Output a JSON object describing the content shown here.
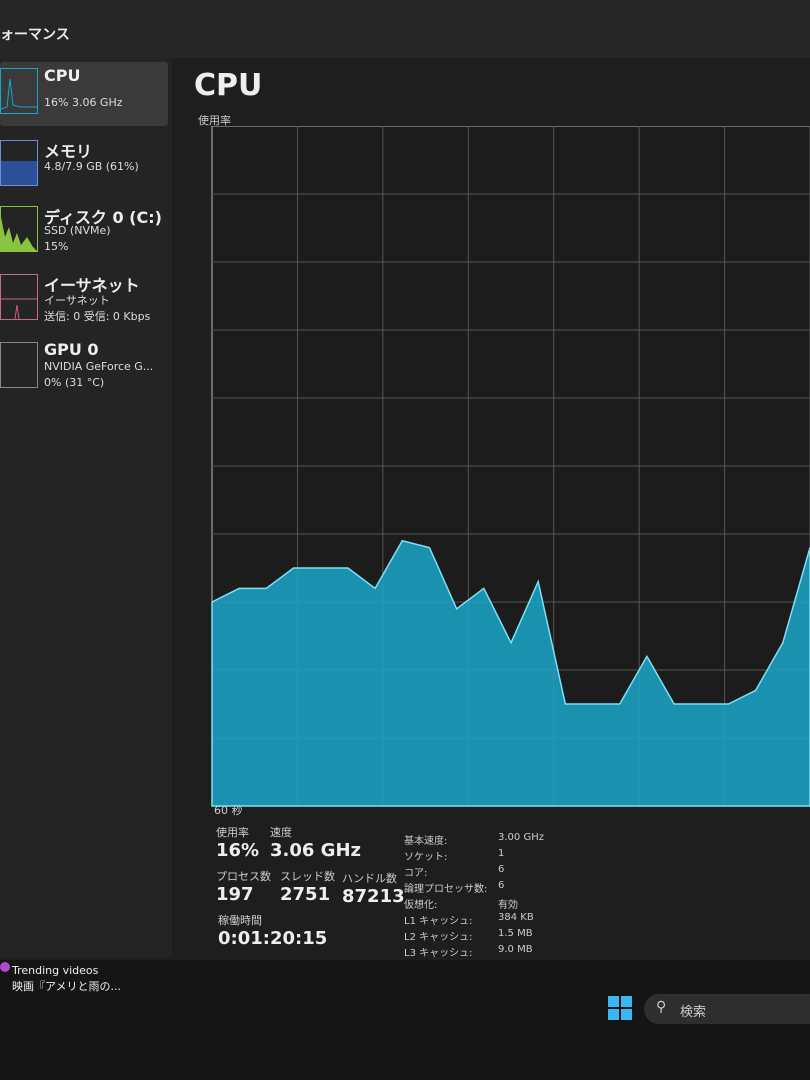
{
  "header": {
    "title": "ォーマンス"
  },
  "sidebar": [
    {
      "name": "CPU",
      "line1": "16% 3.06 GHz"
    },
    {
      "name": "メモリ",
      "line1": "4.8/7.9 GB (61%)"
    },
    {
      "name": "ディスク 0 (C:)",
      "line1": "SSD (NVMe)",
      "line2": "15%"
    },
    {
      "name": "イーサネット",
      "line1": "イーサネット",
      "line2": "送信: 0 受信: 0 Kbps"
    },
    {
      "name": "GPU 0",
      "line1": "NVIDIA GeForce G...",
      "line2": "0% (31 °C)"
    }
  ],
  "main": {
    "title": "CPU",
    "graph_label": "使用率",
    "time_label": "60 秒"
  },
  "graph": {
    "ylim": [
      0,
      100
    ],
    "color": "#19a6c9",
    "values": [
      30,
      32,
      32,
      35,
      35,
      35,
      32,
      39,
      38,
      29,
      32,
      24,
      33,
      15,
      15,
      15,
      22,
      15,
      15,
      15,
      17,
      24,
      38
    ]
  },
  "stats": {
    "usage": {
      "label": "使用率",
      "value": "16%"
    },
    "speed": {
      "label": "速度",
      "value": "3.06 GHz"
    },
    "processes": {
      "label": "プロセス数",
      "value": "197"
    },
    "threads": {
      "label": "スレッド数",
      "value": "2751"
    },
    "handles": {
      "label": "ハンドル数",
      "value": "87213"
    },
    "uptime": {
      "label": "稼働時間",
      "value": "0:01:20:15"
    }
  },
  "specs": [
    {
      "label": "基本速度:",
      "value": "3.00 GHz"
    },
    {
      "label": "ソケット:",
      "value": "1"
    },
    {
      "label": "コア:",
      "value": "6"
    },
    {
      "label": "論理プロセッサ数:",
      "value": "6"
    },
    {
      "label": "仮想化:",
      "value": "有効"
    },
    {
      "label": "L1 キャッシュ:",
      "value": "384 KB"
    },
    {
      "label": "L2 キャッシュ:",
      "value": "1.5 MB"
    },
    {
      "label": "L3 キャッシュ:",
      "value": "9.0 MB"
    }
  ],
  "taskbar": {
    "news_title": "Trending videos",
    "news_text": "映画『アメリと雨の...",
    "search": "検索"
  }
}
